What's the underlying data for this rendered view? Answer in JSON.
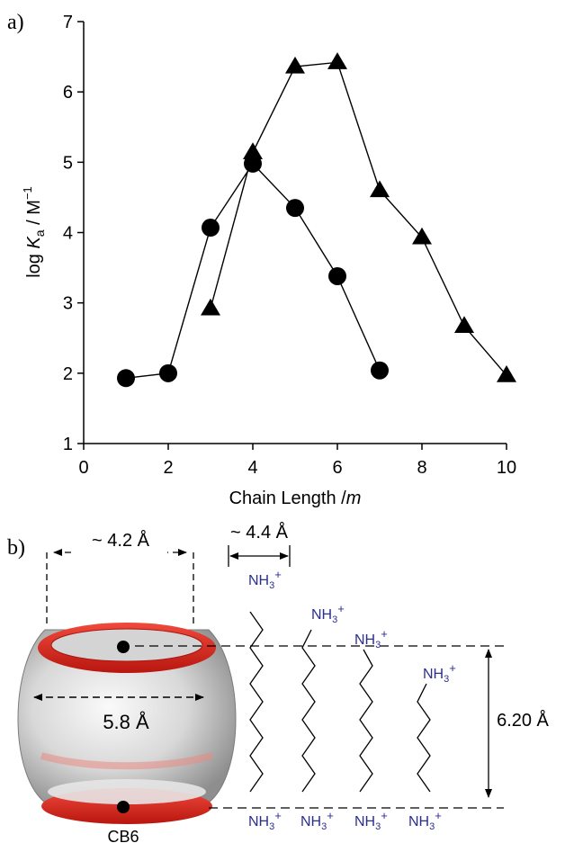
{
  "panel_a": {
    "label": "a)"
  },
  "panel_b": {
    "label": "b)",
    "dim_portal": "~ 4.2 Å",
    "dim_chain_width": "~ 4.4 Å",
    "dim_cavity": "5.8 Å",
    "dim_height": "6.20 Å",
    "molecule_name": "CB6",
    "ammonium_label": "NH",
    "ammonium_sub": "3",
    "ammonium_sup": "+",
    "colors": {
      "ring": "#d8231e",
      "ammonium": "#2b2f8f",
      "body": "#c9c9c9"
    }
  },
  "chart_data": {
    "type": "line",
    "xlabel": {
      "text": "Chain Length /",
      "italic": "m"
    },
    "ylabel": {
      "pre": "log ",
      "italic": "K",
      "sub": "a",
      "post": " / M",
      "sup": "−1"
    },
    "xlim": [
      0,
      10
    ],
    "ylim": [
      1,
      7
    ],
    "xticks": [
      0,
      2,
      4,
      6,
      8,
      10
    ],
    "yticks": [
      1,
      2,
      3,
      4,
      5,
      6,
      7
    ],
    "grid": false,
    "series": [
      {
        "marker": "circle",
        "points": [
          [
            1,
            1.93
          ],
          [
            2,
            2.0
          ],
          [
            3,
            4.07
          ],
          [
            4,
            4.98
          ],
          [
            5,
            4.35
          ],
          [
            6,
            3.38
          ],
          [
            7,
            2.04
          ]
        ]
      },
      {
        "marker": "triangle",
        "points": [
          [
            3,
            2.92
          ],
          [
            4,
            5.14
          ],
          [
            5,
            6.36
          ],
          [
            6,
            6.42
          ],
          [
            7,
            4.6
          ],
          [
            8,
            3.93
          ],
          [
            9,
            2.67
          ],
          [
            10,
            1.97
          ]
        ]
      }
    ]
  }
}
